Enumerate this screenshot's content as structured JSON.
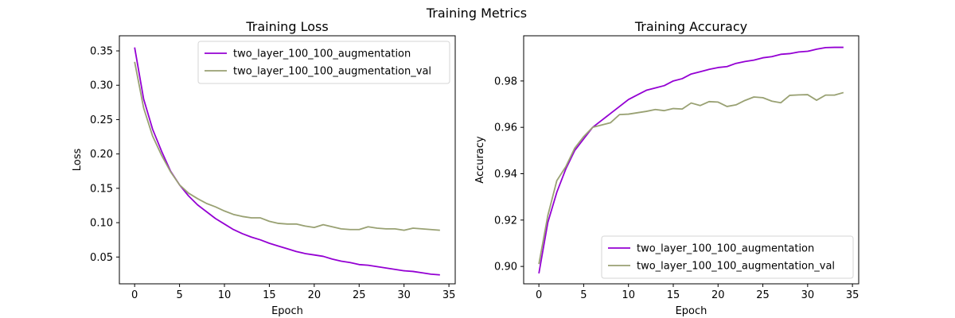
{
  "suptitle": "Training Metrics",
  "colors": {
    "train": "#9400d3",
    "val": "#99a173"
  },
  "chart_data": [
    {
      "type": "line",
      "title": "Training Loss",
      "xlabel": "Epoch",
      "ylabel": "Loss",
      "xlim": [
        -1.7,
        35.7
      ],
      "ylim": [
        0.011,
        0.372
      ],
      "xticks": [
        0,
        5,
        10,
        15,
        20,
        25,
        30,
        35
      ],
      "yticks": [
        0.05,
        0.1,
        0.15,
        0.2,
        0.25,
        0.3,
        0.35
      ],
      "ytick_labels": [
        "0.05",
        "0.10",
        "0.15",
        "0.20",
        "0.25",
        "0.30",
        "0.35"
      ],
      "legend_loc": "upper right",
      "grid": false,
      "x": [
        0,
        1,
        2,
        3,
        4,
        5,
        6,
        7,
        8,
        9,
        10,
        11,
        12,
        13,
        14,
        15,
        16,
        17,
        18,
        19,
        20,
        21,
        22,
        23,
        24,
        25,
        26,
        27,
        28,
        29,
        30,
        31,
        32,
        33,
        34
      ],
      "series": [
        {
          "name": "two_layer_100_100_augmentation",
          "color_key": "train",
          "values": [
            0.355,
            0.28,
            0.236,
            0.204,
            0.175,
            0.155,
            0.139,
            0.126,
            0.116,
            0.106,
            0.098,
            0.09,
            0.084,
            0.079,
            0.075,
            0.07,
            0.066,
            0.062,
            0.058,
            0.055,
            0.053,
            0.051,
            0.047,
            0.044,
            0.042,
            0.039,
            0.038,
            0.036,
            0.034,
            0.032,
            0.03,
            0.029,
            0.027,
            0.025,
            0.024
          ]
        },
        {
          "name": "two_layer_100_100_augmentation_val",
          "color_key": "val",
          "values": [
            0.334,
            0.267,
            0.226,
            0.198,
            0.174,
            0.155,
            0.143,
            0.135,
            0.128,
            0.123,
            0.117,
            0.112,
            0.109,
            0.107,
            0.107,
            0.102,
            0.099,
            0.098,
            0.098,
            0.095,
            0.093,
            0.097,
            0.094,
            0.091,
            0.09,
            0.09,
            0.094,
            0.092,
            0.091,
            0.091,
            0.089,
            0.092,
            0.091,
            0.09,
            0.089
          ]
        }
      ]
    },
    {
      "type": "line",
      "title": "Training Accuracy",
      "xlabel": "Epoch",
      "ylabel": "Accuracy",
      "xlim": [
        -1.7,
        35.7
      ],
      "ylim": [
        0.8925,
        0.9995
      ],
      "xticks": [
        0,
        5,
        10,
        15,
        20,
        25,
        30,
        35
      ],
      "yticks": [
        0.9,
        0.92,
        0.94,
        0.96,
        0.98
      ],
      "ytick_labels": [
        "0.90",
        "0.92",
        "0.94",
        "0.96",
        "0.98"
      ],
      "legend_loc": "lower right",
      "grid": false,
      "x": [
        0,
        1,
        2,
        3,
        4,
        5,
        6,
        7,
        8,
        9,
        10,
        11,
        12,
        13,
        14,
        15,
        16,
        17,
        18,
        19,
        20,
        21,
        22,
        23,
        24,
        25,
        26,
        27,
        28,
        29,
        30,
        31,
        32,
        33,
        34
      ],
      "series": [
        {
          "name": "two_layer_100_100_augmentation",
          "color_key": "train",
          "values": [
            0.897,
            0.919,
            0.932,
            0.942,
            0.95,
            0.955,
            0.96,
            0.963,
            0.966,
            0.969,
            0.972,
            0.974,
            0.976,
            0.977,
            0.978,
            0.98,
            0.981,
            0.983,
            0.984,
            0.985,
            0.9858,
            0.9862,
            0.9876,
            0.9884,
            0.989,
            0.99,
            0.9905,
            0.9915,
            0.9918,
            0.9925,
            0.9928,
            0.9937,
            0.9944,
            0.9945,
            0.9945
          ]
        },
        {
          "name": "two_layer_100_100_augmentation_val",
          "color_key": "val",
          "values": [
            0.901,
            0.922,
            0.937,
            0.943,
            0.951,
            0.956,
            0.96,
            0.961,
            0.962,
            0.9655,
            0.9657,
            0.9663,
            0.9669,
            0.9677,
            0.9672,
            0.9681,
            0.9679,
            0.9705,
            0.9694,
            0.9711,
            0.9709,
            0.969,
            0.9697,
            0.9716,
            0.9731,
            0.9728,
            0.9713,
            0.9706,
            0.9738,
            0.974,
            0.9741,
            0.9717,
            0.9739,
            0.9739,
            0.975
          ]
        }
      ]
    }
  ]
}
